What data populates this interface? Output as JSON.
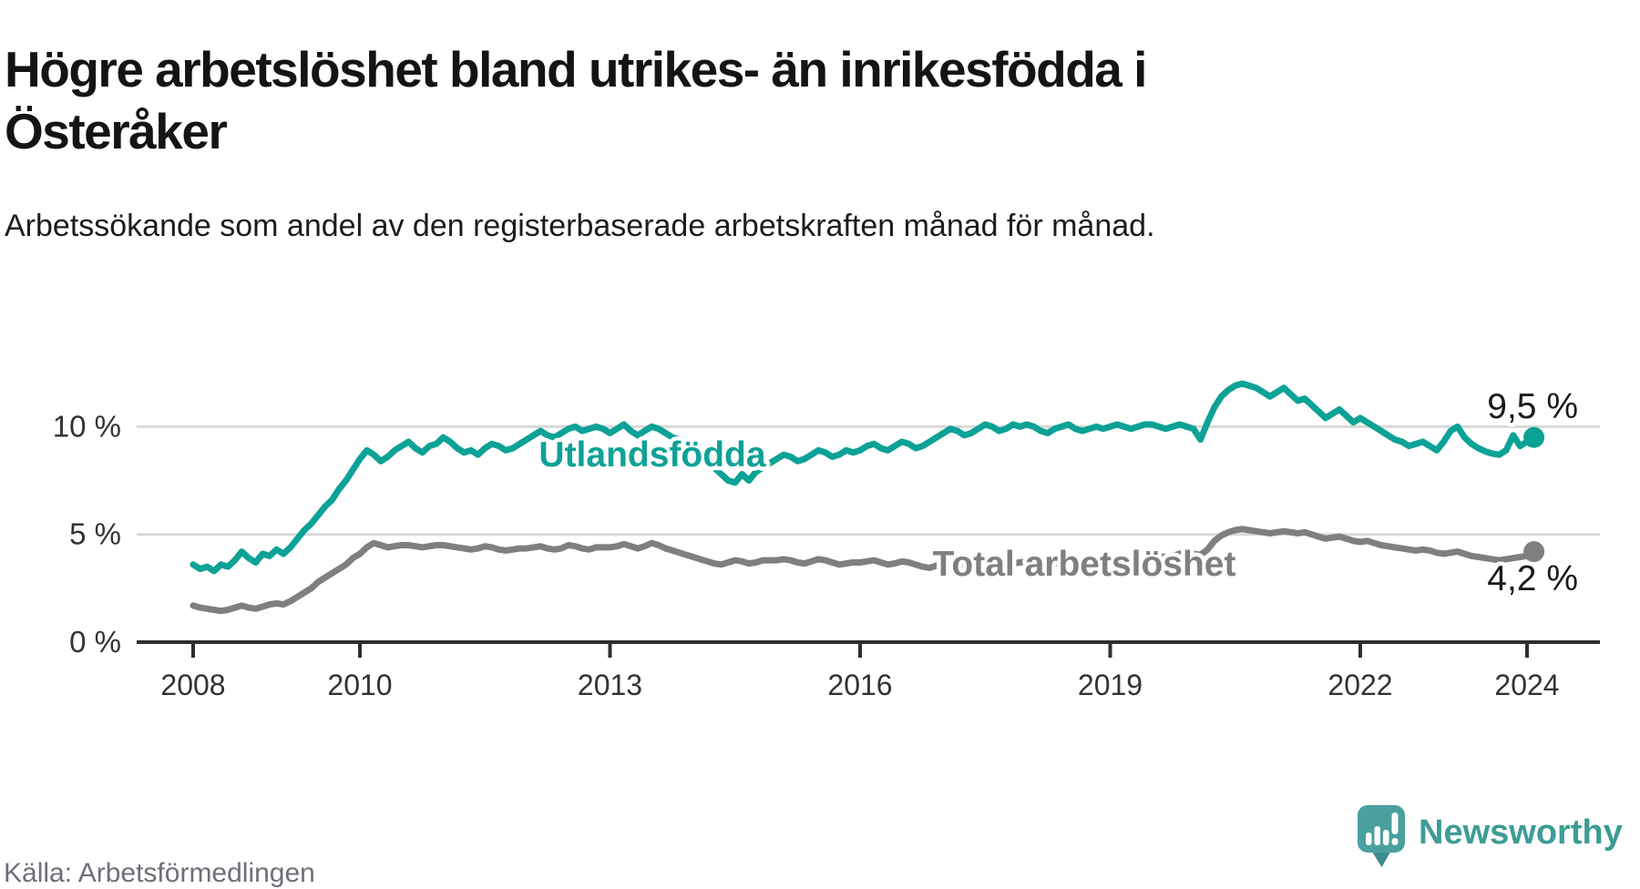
{
  "header": {
    "title": "Högre arbetslöshet bland utrikes- än inrikesfödda i Österåker",
    "subtitle": "Arbetssökande som andel av den registerbaserade arbetskraften månad för månad."
  },
  "chart_data": {
    "type": "line",
    "unit": "%",
    "x_start": {
      "year": 2008,
      "month": 1
    },
    "x_end": {
      "year": 2024,
      "month": 2
    },
    "x_interval": "monthly",
    "x_axis": {
      "tick_years": [
        2008,
        2010,
        2013,
        2016,
        2019,
        2022,
        2024
      ]
    },
    "y_axis": {
      "ticks": [
        {
          "value": 0,
          "label": "0 %"
        },
        {
          "value": 5,
          "label": "5 %"
        },
        {
          "value": 10,
          "label": "10 %"
        }
      ],
      "range": [
        0,
        12.5
      ],
      "grid": true
    },
    "legend_position": "inline-labels-on-lines",
    "series": [
      {
        "name": "Utlandsfödda",
        "color": "#0da296",
        "end_value": 9.5,
        "end_label": "9,5 %",
        "values": [
          3.6,
          3.4,
          3.5,
          3.3,
          3.6,
          3.5,
          3.8,
          4.2,
          3.9,
          3.7,
          4.1,
          4.0,
          4.3,
          4.1,
          4.4,
          4.8,
          5.2,
          5.5,
          5.9,
          6.3,
          6.6,
          7.1,
          7.5,
          8.0,
          8.5,
          8.9,
          8.7,
          8.4,
          8.6,
          8.9,
          9.1,
          9.3,
          9.0,
          8.8,
          9.1,
          9.2,
          9.5,
          9.3,
          9.0,
          8.8,
          8.9,
          8.7,
          9.0,
          9.2,
          9.1,
          8.9,
          9.0,
          9.2,
          9.4,
          9.6,
          9.8,
          9.6,
          9.5,
          9.7,
          9.9,
          10.0,
          9.8,
          9.9,
          10.0,
          9.9,
          9.7,
          9.9,
          10.1,
          9.8,
          9.6,
          9.8,
          10.0,
          9.9,
          9.7,
          9.5,
          9.4,
          9.3,
          9.1,
          8.8,
          8.4,
          8.1,
          7.8,
          7.5,
          7.4,
          7.8,
          7.5,
          7.9,
          8.1,
          8.3,
          8.5,
          8.7,
          8.6,
          8.4,
          8.5,
          8.7,
          8.9,
          8.8,
          8.6,
          8.7,
          8.9,
          8.8,
          8.9,
          9.1,
          9.2,
          9.0,
          8.9,
          9.1,
          9.3,
          9.2,
          9.0,
          9.1,
          9.3,
          9.5,
          9.7,
          9.9,
          9.8,
          9.6,
          9.7,
          9.9,
          10.1,
          10.0,
          9.8,
          9.9,
          10.1,
          10.0,
          10.1,
          10.0,
          9.8,
          9.7,
          9.9,
          10.0,
          10.1,
          9.9,
          9.8,
          9.9,
          10.0,
          9.9,
          10.0,
          10.1,
          10.0,
          9.9,
          10.0,
          10.1,
          10.1,
          10.0,
          9.9,
          10.0,
          10.1,
          10.0,
          9.9,
          9.4,
          10.2,
          10.9,
          11.4,
          11.7,
          11.9,
          12.0,
          11.9,
          11.8,
          11.6,
          11.4,
          11.6,
          11.8,
          11.5,
          11.2,
          11.3,
          11.0,
          10.7,
          10.4,
          10.6,
          10.8,
          10.5,
          10.2,
          10.4,
          10.2,
          10.0,
          9.8,
          9.6,
          9.4,
          9.3,
          9.1,
          9.2,
          9.3,
          9.1,
          8.9,
          9.3,
          9.8,
          10.0,
          9.5,
          9.2,
          9.0,
          8.85,
          8.75,
          8.7,
          8.9,
          9.6,
          9.1,
          9.3,
          9.5
        ]
      },
      {
        "name": "Total arbetslöshet",
        "color": "#7f7f7f",
        "end_value": 4.2,
        "end_label": "4,2 %",
        "values": [
          1.7,
          1.6,
          1.55,
          1.5,
          1.45,
          1.5,
          1.6,
          1.7,
          1.6,
          1.55,
          1.65,
          1.75,
          1.8,
          1.75,
          1.9,
          2.1,
          2.3,
          2.5,
          2.8,
          3.0,
          3.2,
          3.4,
          3.6,
          3.9,
          4.1,
          4.4,
          4.6,
          4.5,
          4.4,
          4.45,
          4.5,
          4.5,
          4.45,
          4.4,
          4.45,
          4.5,
          4.5,
          4.45,
          4.4,
          4.35,
          4.3,
          4.35,
          4.45,
          4.4,
          4.3,
          4.25,
          4.3,
          4.35,
          4.35,
          4.4,
          4.45,
          4.35,
          4.3,
          4.35,
          4.5,
          4.45,
          4.35,
          4.3,
          4.4,
          4.4,
          4.4,
          4.45,
          4.55,
          4.45,
          4.35,
          4.45,
          4.6,
          4.5,
          4.35,
          4.25,
          4.15,
          4.05,
          3.95,
          3.85,
          3.75,
          3.65,
          3.6,
          3.7,
          3.8,
          3.75,
          3.65,
          3.7,
          3.8,
          3.8,
          3.8,
          3.85,
          3.8,
          3.7,
          3.65,
          3.75,
          3.85,
          3.8,
          3.7,
          3.6,
          3.65,
          3.7,
          3.7,
          3.75,
          3.8,
          3.7,
          3.6,
          3.65,
          3.75,
          3.7,
          3.6,
          3.5,
          3.45,
          3.55,
          3.6,
          3.65,
          3.7,
          3.6,
          3.55,
          3.65,
          3.75,
          3.7,
          3.6,
          3.55,
          3.65,
          3.7,
          3.75,
          3.8,
          3.7,
          3.6,
          3.65,
          3.75,
          3.8,
          3.75,
          3.65,
          3.7,
          3.8,
          3.85,
          3.9,
          3.95,
          3.9,
          3.85,
          3.9,
          4.0,
          4.05,
          4.0,
          3.95,
          4.0,
          4.1,
          4.05,
          4.1,
          4.05,
          4.3,
          4.7,
          4.95,
          5.1,
          5.2,
          5.25,
          5.2,
          5.15,
          5.1,
          5.05,
          5.1,
          5.15,
          5.1,
          5.05,
          5.1,
          5.0,
          4.9,
          4.8,
          4.85,
          4.9,
          4.8,
          4.7,
          4.65,
          4.7,
          4.6,
          4.5,
          4.45,
          4.4,
          4.35,
          4.3,
          4.25,
          4.3,
          4.25,
          4.15,
          4.1,
          4.15,
          4.2,
          4.1,
          4.0,
          3.95,
          3.9,
          3.85,
          3.8,
          3.85,
          3.9,
          3.95,
          4.0,
          4.2
        ]
      }
    ]
  },
  "footer": {
    "source": "Källa: Arbetsförmedlingen",
    "brand": "Newsworthy",
    "logo_icon": "newsworthy-speech-bubble-chart-icon"
  },
  "colors": {
    "accent_teal": "#0da296",
    "series_gray": "#7f7f7f",
    "grid": "#d9d9d9",
    "axis": "#2f2f2f",
    "text_dark": "#141414",
    "source_gray": "#6f6f79",
    "brand_teal": "#3d9c96"
  }
}
